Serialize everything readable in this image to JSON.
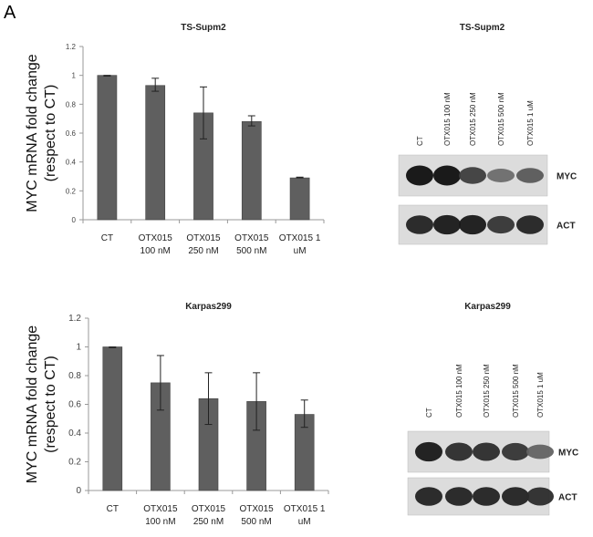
{
  "panel_label": "A",
  "chart_data": [
    {
      "type": "bar",
      "title": "TS-Supm2",
      "ylabel": "MYC mRNA fold change (respect to CT)",
      "ylabel_lines": [
        "MYC mRNA fold change",
        "(respect to CT)"
      ],
      "xlabel": "",
      "ylim": [
        0,
        1.2
      ],
      "yticks": [
        "0",
        "0.2",
        "0.4",
        "0.6",
        "0.8",
        "1",
        "1.2"
      ],
      "categories": [
        [
          "CT"
        ],
        [
          "OTX015",
          "100 nM"
        ],
        [
          "OTX015",
          "250 nM"
        ],
        [
          "OTX015",
          "500 nM"
        ],
        [
          "OTX015 1",
          "uM"
        ]
      ],
      "values": [
        1.0,
        0.93,
        0.74,
        0.68,
        0.29
      ],
      "error_low": [
        0.995,
        0.89,
        0.56,
        0.65,
        0.29
      ],
      "error_high": [
        1.0,
        0.98,
        0.92,
        0.72,
        0.295
      ],
      "bar_color": "#5f5f5f",
      "grid": false
    },
    {
      "type": "bar",
      "title": "Karpas299",
      "ylabel": "MYC mRNA fold change (respect to CT)",
      "ylabel_lines": [
        "MYC mRNA fold change",
        "(respect to CT)"
      ],
      "xlabel": "",
      "ylim": [
        0,
        1.2
      ],
      "yticks": [
        "0",
        "0.2",
        "0.4",
        "0.6",
        "0.8",
        "1",
        "1.2"
      ],
      "categories": [
        [
          "CT"
        ],
        [
          "OTX015",
          "100 nM"
        ],
        [
          "OTX015",
          "250 nM"
        ],
        [
          "OTX015",
          "500 nM"
        ],
        [
          "OTX015 1",
          "uM"
        ]
      ],
      "values": [
        1.0,
        0.75,
        0.64,
        0.62,
        0.53
      ],
      "error_low": [
        0.995,
        0.56,
        0.46,
        0.42,
        0.44
      ],
      "error_high": [
        1.0,
        0.94,
        0.82,
        0.82,
        0.63
      ],
      "bar_color": "#5f5f5f",
      "grid": false
    }
  ],
  "blots": [
    {
      "title": "TS-Supm2",
      "lanes": [
        "CT",
        "OTX015 100 nM",
        "OTX015 250 nM",
        "OTX015 500 nM",
        "OTX015 1 uM"
      ],
      "rows": [
        {
          "label": "MYC",
          "intensity": [
            1.0,
            1.0,
            0.75,
            0.5,
            0.6
          ]
        },
        {
          "label": "ACT",
          "intensity": [
            0.9,
            0.95,
            0.95,
            0.8,
            0.9
          ]
        }
      ]
    },
    {
      "title": "Karpas299",
      "lanes": [
        "CT",
        "OTX015 100 nM",
        "OTX015 250 nM",
        "OTX015 500 nM",
        "OTX015 1 uM"
      ],
      "rows": [
        {
          "label": "MYC",
          "intensity": [
            0.95,
            0.85,
            0.85,
            0.8,
            0.55
          ]
        },
        {
          "label": "ACT",
          "intensity": [
            0.9,
            0.9,
            0.9,
            0.9,
            0.85
          ]
        }
      ]
    }
  ]
}
